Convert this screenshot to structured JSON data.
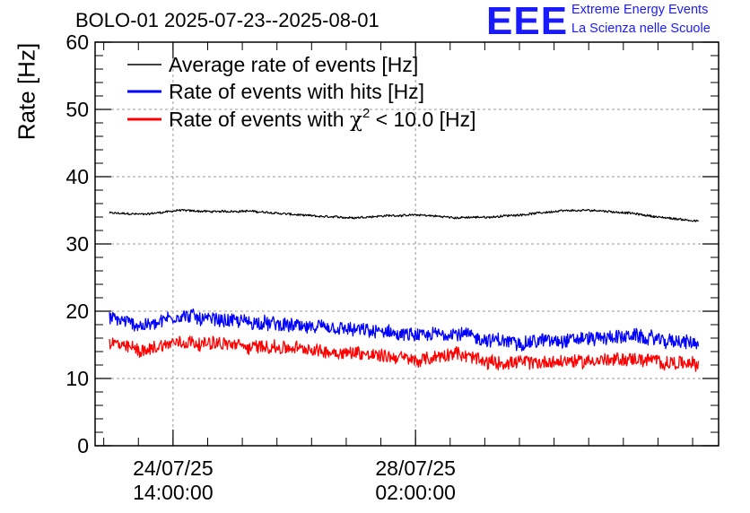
{
  "header": {
    "title": "BOLO-01 2025-07-23--2025-08-01"
  },
  "logo": {
    "mark": "EEE",
    "line1": "Extreme Energy Events",
    "line2": "La Scienza nelle Scuole",
    "color": "#1a1aff"
  },
  "chart_data": {
    "type": "line",
    "title": "BOLO-01 2025-07-23--2025-08-01",
    "ylabel": "Rate [Hz]",
    "xlabel": "",
    "ylim": [
      0,
      60
    ],
    "yticks": [
      0,
      10,
      20,
      30,
      40,
      50,
      60
    ],
    "x_start": "2025-07-23T11:00:00",
    "x_end": "2025-08-01T11:00:00",
    "x_ticks": [
      {
        "time": "2025-07-24T14:00:00",
        "date_label": "24/07/25",
        "time_label": "14:00:00"
      },
      {
        "time": "2025-07-28T02:00:00",
        "date_label": "28/07/25",
        "time_label": "02:00:00"
      }
    ],
    "grid": true,
    "legend_position": "top-left",
    "series": [
      {
        "name": "Average rate of events [Hz]",
        "color": "#000000",
        "noise": 0.3,
        "x": [
          "2025-07-23T16:00:00",
          "2025-07-24T04:00:00",
          "2025-07-24T16:00:00",
          "2025-07-25T04:00:00",
          "2025-07-25T16:00:00",
          "2025-07-26T04:00:00",
          "2025-07-26T16:00:00",
          "2025-07-27T04:00:00",
          "2025-07-27T16:00:00",
          "2025-07-28T04:00:00",
          "2025-07-28T16:00:00",
          "2025-07-29T04:00:00",
          "2025-07-29T16:00:00",
          "2025-07-30T04:00:00",
          "2025-07-30T16:00:00",
          "2025-07-31T04:00:00",
          "2025-07-31T16:00:00",
          "2025-08-01T04:00:00"
        ],
        "values": [
          34.6,
          34.4,
          35.0,
          34.8,
          34.9,
          34.5,
          34.1,
          33.9,
          34.2,
          34.3,
          33.9,
          34.0,
          34.4,
          34.9,
          35.0,
          34.6,
          33.9,
          33.4
        ]
      },
      {
        "name": "Rate of events with hits [Hz]",
        "color": "#0000ff",
        "noise": 2.0,
        "x": [
          "2025-07-23T16:00:00",
          "2025-07-24T04:00:00",
          "2025-07-24T16:00:00",
          "2025-07-25T04:00:00",
          "2025-07-25T16:00:00",
          "2025-07-26T04:00:00",
          "2025-07-26T16:00:00",
          "2025-07-27T04:00:00",
          "2025-07-27T16:00:00",
          "2025-07-28T04:00:00",
          "2025-07-28T16:00:00",
          "2025-07-29T04:00:00",
          "2025-07-29T16:00:00",
          "2025-07-30T04:00:00",
          "2025-07-30T16:00:00",
          "2025-07-31T04:00:00",
          "2025-07-31T16:00:00",
          "2025-08-01T04:00:00"
        ],
        "values": [
          19.0,
          17.8,
          19.4,
          18.8,
          18.4,
          17.9,
          17.5,
          17.2,
          16.8,
          16.2,
          16.9,
          15.6,
          15.4,
          15.8,
          16.0,
          16.3,
          15.7,
          15.2
        ]
      },
      {
        "name": "Rate of events with χ² < 10.0 [Hz]",
        "color": "#ff0000",
        "noise": 1.9,
        "x": [
          "2025-07-23T16:00:00",
          "2025-07-24T04:00:00",
          "2025-07-24T16:00:00",
          "2025-07-25T04:00:00",
          "2025-07-25T16:00:00",
          "2025-07-26T04:00:00",
          "2025-07-26T16:00:00",
          "2025-07-27T04:00:00",
          "2025-07-27T16:00:00",
          "2025-07-28T04:00:00",
          "2025-07-28T16:00:00",
          "2025-07-29T04:00:00",
          "2025-07-29T16:00:00",
          "2025-07-30T04:00:00",
          "2025-07-30T16:00:00",
          "2025-07-31T04:00:00",
          "2025-07-31T16:00:00",
          "2025-08-01T04:00:00"
        ],
        "values": [
          15.2,
          14.2,
          15.6,
          15.2,
          14.8,
          14.6,
          14.1,
          13.9,
          13.4,
          12.6,
          13.8,
          12.4,
          12.3,
          12.5,
          12.7,
          12.9,
          12.5,
          12.0
        ]
      }
    ],
    "legend": [
      {
        "label_pre": "Rate of events with ",
        "symbol": "χ",
        "sup": "2",
        "label_post": " < 10.0 [Hz]"
      }
    ]
  }
}
